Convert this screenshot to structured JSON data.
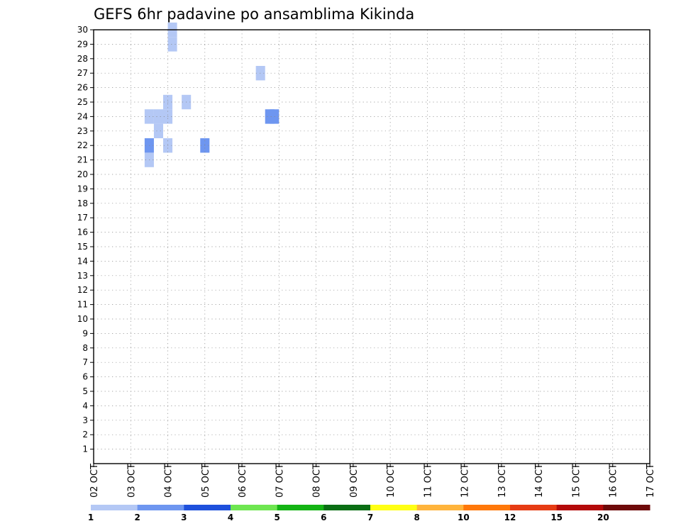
{
  "chart_data": {
    "type": "heatmap",
    "title": "GEFS 6hr padavine po ansamblima Kikinda",
    "y_ticks": [
      "1",
      "2",
      "3",
      "4",
      "5",
      "6",
      "7",
      "8",
      "9",
      "10",
      "11",
      "12",
      "13",
      "14",
      "15",
      "16",
      "17",
      "18",
      "19",
      "20",
      "21",
      "22",
      "23",
      "24",
      "25",
      "26",
      "27",
      "28",
      "29",
      "30"
    ],
    "x_ticks": [
      "02 OCT",
      "03 OCT",
      "04 OCT",
      "05 OCT",
      "06 OCT",
      "07 OCT",
      "08 OCT",
      "09 OCT",
      "10 OCT",
      "11 OCT",
      "12 OCT",
      "13 OCT",
      "14 OCT",
      "15 OCT",
      "16 OCT",
      "17 OCT"
    ],
    "x_range": [
      0,
      60
    ],
    "y_range": [
      0,
      30
    ],
    "legend_levels": [
      {
        "label": "1",
        "color": "#b4c8f5"
      },
      {
        "label": "2",
        "color": "#6e96f0"
      },
      {
        "label": "3",
        "color": "#1e50dc"
      },
      {
        "label": "4",
        "color": "#6ee650"
      },
      {
        "label": "5",
        "color": "#14b414"
      },
      {
        "label": "6",
        "color": "#0a6e14"
      },
      {
        "label": "7",
        "color": "#ffff14"
      },
      {
        "label": "8",
        "color": "#ffb43c"
      },
      {
        "label": "10",
        "color": "#ff780a"
      },
      {
        "label": "12",
        "color": "#e63c14"
      },
      {
        "label": "15",
        "color": "#b40a0a"
      },
      {
        "label": "20",
        "color": "#6e0a0a"
      }
    ],
    "cells": [
      {
        "x": 8.5,
        "y": 29,
        "l": 1
      },
      {
        "x": 8.5,
        "y": 30,
        "l": 1
      },
      {
        "x": 18,
        "y": 27,
        "l": 1
      },
      {
        "x": 10,
        "y": 25,
        "l": 1
      },
      {
        "x": 19,
        "y": 24,
        "l": 2
      },
      {
        "x": 12,
        "y": 22,
        "l": 2
      },
      {
        "x": 19.5,
        "y": 24,
        "l": 2
      },
      {
        "x": 6,
        "y": 22,
        "l": 2
      },
      {
        "x": 8,
        "y": 22,
        "l": 1
      },
      {
        "x": 6,
        "y": 21,
        "l": 1
      },
      {
        "x": 8,
        "y": 25,
        "l": 1
      },
      {
        "x": 8,
        "y": 24,
        "l": 1
      },
      {
        "x": 6,
        "y": 24,
        "l": 1
      },
      {
        "x": 7,
        "y": 24,
        "l": 1
      },
      {
        "x": 7,
        "y": 23,
        "l": 1
      }
    ]
  }
}
